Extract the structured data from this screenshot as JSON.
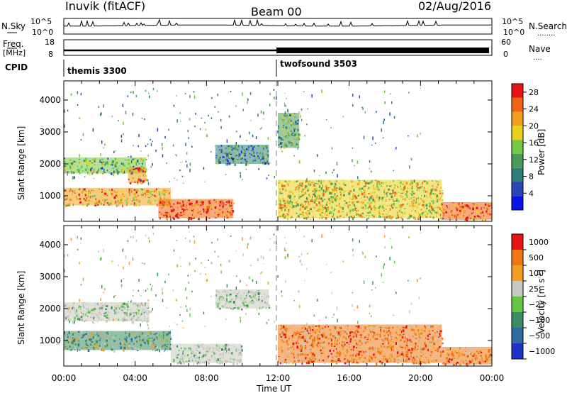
{
  "header": {
    "station": "Inuvik (fitACF)",
    "beam": "Beam 00",
    "date": "02/Aug/2016"
  },
  "labels": {
    "nsky": "N.Sky",
    "nsearch": "N.Search",
    "nsearch_dots": "........",
    "freq_line1": "Freq.",
    "freq_line2": "[MHz]",
    "nave": "Nave",
    "nave_dots": "....",
    "cpid": "CPID"
  },
  "noise_panel": {
    "left_ticks": [
      "10^5",
      "10^0"
    ],
    "right_ticks": [
      "10^5",
      "10^0"
    ]
  },
  "freq_panel": {
    "left_ticks": [
      "18",
      "8"
    ],
    "right_ticks": [
      "60",
      "0"
    ]
  },
  "cpid_segments": [
    {
      "name": "themis 3300",
      "start_hour": 0
    },
    {
      "name": "twofsound 3503",
      "start_hour": 12
    }
  ],
  "colors": {
    "velocity_gray": "#c8c8c0",
    "divider": "#b0b0b0"
  },
  "chart_data": [
    {
      "type": "heatmap",
      "panel": "power",
      "title": "",
      "ylabel": "Slant Range [km]",
      "xlabel": "",
      "xlim_hours": [
        0,
        24
      ],
      "ylim": [
        200,
        4600
      ],
      "y_ticks": [
        1000,
        2000,
        3000,
        4000
      ],
      "x_ticks": [
        "00:00",
        "04:00",
        "08:00",
        "12:00",
        "16:00",
        "20:00",
        "00:00"
      ],
      "colorbar": {
        "label": "Power [dB]",
        "ticks": [
          "4",
          "8",
          "12",
          "16",
          "20",
          "24",
          "28"
        ],
        "range": [
          0,
          30
        ],
        "colors": [
          "#0a14e6",
          "#2846b4",
          "#2e7d78",
          "#4c9a5a",
          "#73c846",
          "#e6d21e",
          "#f0a01e",
          "#f06414",
          "#e61414"
        ]
      },
      "regions": [
        {
          "t0": 0.0,
          "t1": 6.0,
          "r0": 700,
          "r1": 1250,
          "level": 0.72
        },
        {
          "t0": 0.0,
          "t1": 4.6,
          "r0": 1700,
          "r1": 2200,
          "level": 0.45
        },
        {
          "t0": 3.6,
          "t1": 4.6,
          "r0": 1400,
          "r1": 1900,
          "level": 0.8
        },
        {
          "t0": 5.3,
          "t1": 9.5,
          "r0": 300,
          "r1": 900,
          "level": 0.92
        },
        {
          "t0": 8.5,
          "t1": 11.5,
          "r0": 2000,
          "r1": 2600,
          "level": 0.3
        },
        {
          "t0": 12.0,
          "t1": 21.2,
          "r0": 300,
          "r1": 1500,
          "level": 0.62
        },
        {
          "t0": 21.2,
          "t1": 24.0,
          "r0": 250,
          "r1": 800,
          "level": 0.88
        },
        {
          "t0": 12.0,
          "t1": 13.2,
          "r0": 2500,
          "r1": 3600,
          "level": 0.4
        }
      ]
    },
    {
      "type": "heatmap",
      "panel": "velocity",
      "title": "",
      "ylabel": "Slant Range [km]",
      "xlabel": "Time UT",
      "xlim_hours": [
        0,
        24
      ],
      "ylim": [
        200,
        4600
      ],
      "y_ticks": [
        1000,
        2000,
        3000,
        4000
      ],
      "x_ticks": [
        "00:00",
        "04:00",
        "08:00",
        "12:00",
        "16:00",
        "20:00",
        "00:00"
      ],
      "colorbar": {
        "label": "Velocity [m s",
        "label_sup": "-1",
        "label_close": "]",
        "ticks": [
          "1000",
          "500",
          "100",
          "25",
          "−25",
          "−100",
          "−500",
          "−1000"
        ],
        "colors": [
          "#1e32c8",
          "#2e6aa0",
          "#3c8c64",
          "#64c846",
          "#c8c8c0",
          "#f0a01e",
          "#f07814",
          "#e61414"
        ]
      },
      "regions": [
        {
          "t0": 0.0,
          "t1": 4.8,
          "r0": 1600,
          "r1": 2200,
          "cls": "gray"
        },
        {
          "t0": 0.0,
          "t1": 6.0,
          "r0": 700,
          "r1": 1300,
          "cls": "green"
        },
        {
          "t0": 6.0,
          "t1": 10.0,
          "r0": 300,
          "r1": 900,
          "cls": "gray"
        },
        {
          "t0": 8.5,
          "t1": 11.5,
          "r0": 2000,
          "r1": 2600,
          "cls": "gray"
        },
        {
          "t0": 12.0,
          "t1": 21.2,
          "r0": 300,
          "r1": 1500,
          "cls": "orange"
        },
        {
          "t0": 21.2,
          "t1": 24.0,
          "r0": 250,
          "r1": 800,
          "cls": "orange"
        }
      ]
    }
  ]
}
